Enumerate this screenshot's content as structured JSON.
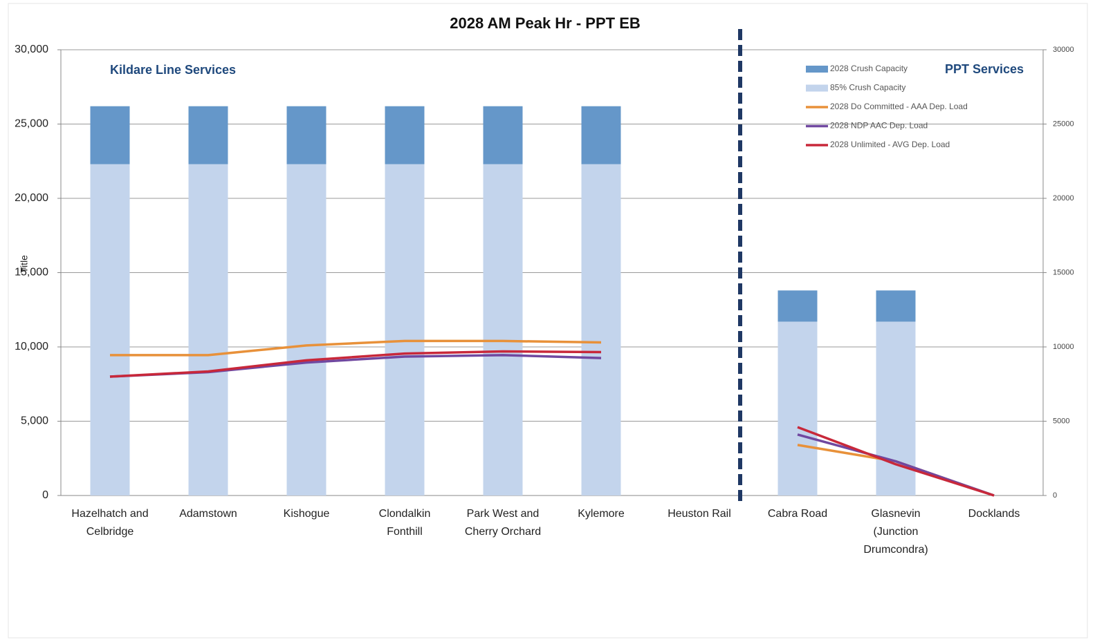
{
  "chart_data": {
    "type": "bar",
    "title": "2028 AM Peak Hr - PPT EB",
    "y_label": "Title",
    "annotations": [
      "Kildare Line Services",
      "PPT Services"
    ],
    "categories": [
      [
        "Hazelhatch and",
        "Celbridge"
      ],
      [
        "Adamstown"
      ],
      [
        "Kishogue"
      ],
      [
        "Clondalkin",
        "Fonthill"
      ],
      [
        "Park West and",
        "Cherry Orchard"
      ],
      [
        "Kylemore"
      ],
      [
        "Heuston Rail"
      ],
      [
        "Cabra Road"
      ],
      [
        "Glasnevin",
        "(Junction",
        "Drumcondra)"
      ],
      [
        "Docklands"
      ]
    ],
    "series": [
      {
        "name": "2028 Crush Capacity",
        "type": "bar",
        "color": "#6597c9",
        "values": [
          3900,
          3900,
          3900,
          3900,
          3900,
          3900,
          null,
          2100,
          2100,
          null
        ]
      },
      {
        "name": "85% Crush Capacity",
        "type": "bar",
        "color": "#c3d4ec",
        "values": [
          22300,
          22300,
          22300,
          22300,
          22300,
          22300,
          null,
          11700,
          11700,
          null
        ]
      },
      {
        "name": "2028 Do Committed - AAA Dep. Load",
        "type": "line",
        "color": "#e8913a",
        "values": [
          9450,
          9450,
          10100,
          10400,
          10400,
          10300,
          null,
          3400,
          2300,
          0
        ]
      },
      {
        "name": "2028 NDP AAC Dep. Load",
        "type": "line",
        "color": "#7048a0",
        "values": [
          8000,
          8300,
          8950,
          9350,
          9450,
          9250,
          null,
          4100,
          2300,
          0
        ]
      },
      {
        "name": "2028 Unlimited - AVG Dep. Load",
        "type": "line",
        "color": "#c8283a",
        "values": [
          8000,
          8350,
          9100,
          9550,
          9700,
          9650,
          null,
          4600,
          2100,
          0
        ]
      }
    ],
    "ylim": [
      0,
      30000
    ],
    "yticks": [
      0,
      {
        "value": 5000,
        "label": "5,000"
      },
      {
        "value": 10000,
        "label": "10,000"
      },
      {
        "value": 15000,
        "label": "15,000"
      },
      {
        "value": 20000,
        "label": "20,000"
      },
      {
        "value": 25000,
        "label": "25,000"
      },
      {
        "value": 30000,
        "label": "30,000"
      }
    ],
    "y2lim": [
      0,
      30000
    ],
    "y2ticks": [
      0,
      5000,
      10000,
      15000,
      20000,
      25000,
      30000
    ],
    "grid": true
  }
}
